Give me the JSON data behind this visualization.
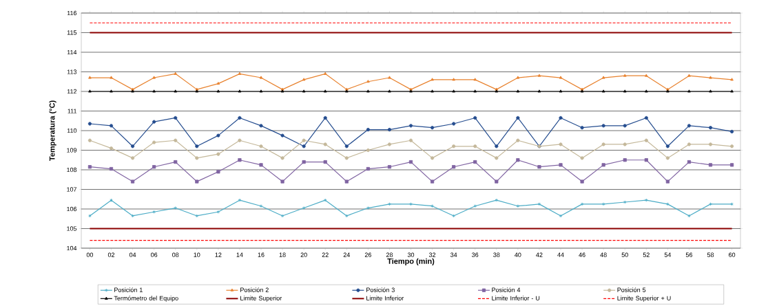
{
  "chart_data": {
    "type": "line",
    "xlabel": "Tiempo (min)",
    "ylabel": "Temperatura (°C)",
    "categories": [
      "00",
      "02",
      "04",
      "06",
      "08",
      "10",
      "12",
      "14",
      "16",
      "18",
      "20",
      "22",
      "24",
      "26",
      "28",
      "30",
      "32",
      "34",
      "36",
      "38",
      "40",
      "42",
      "44",
      "46",
      "48",
      "50",
      "52",
      "54",
      "56",
      "58",
      "60"
    ],
    "ylim": [
      104,
      116
    ],
    "yticks": [
      104,
      105,
      106,
      107,
      108,
      109,
      110,
      111,
      112,
      113,
      114,
      115,
      116
    ],
    "grid": "y",
    "legend": "bottom",
    "line_style": "solid",
    "series": [
      {
        "name": "Posición 1",
        "color": "#4bacc6",
        "marker": "cross",
        "values": [
          105.65,
          106.45,
          105.65,
          105.85,
          106.05,
          105.65,
          105.85,
          106.45,
          106.15,
          105.65,
          106.05,
          106.45,
          105.65,
          106.05,
          106.25,
          106.25,
          106.15,
          105.65,
          106.15,
          106.45,
          106.15,
          106.25,
          105.65,
          106.25,
          106.25,
          106.35,
          106.45,
          106.25,
          105.65,
          106.25,
          106.25
        ]
      },
      {
        "name": "Posición 2",
        "color": "#e8822e",
        "marker": "triangle",
        "values": [
          112.7,
          112.7,
          112.1,
          112.7,
          112.9,
          112.1,
          112.4,
          112.9,
          112.7,
          112.1,
          112.6,
          112.9,
          112.1,
          112.5,
          112.7,
          112.1,
          112.6,
          112.6,
          112.6,
          112.1,
          112.7,
          112.8,
          112.7,
          112.1,
          112.7,
          112.8,
          112.8,
          112.1,
          112.8,
          112.7,
          112.6
        ]
      },
      {
        "name": "Posición 3",
        "color": "#254d8f",
        "marker": "circle",
        "values": [
          110.35,
          110.25,
          109.2,
          110.45,
          110.65,
          109.2,
          109.75,
          110.65,
          110.25,
          109.75,
          109.2,
          110.65,
          109.2,
          110.05,
          110.05,
          110.25,
          110.15,
          110.35,
          110.65,
          109.2,
          110.65,
          109.2,
          110.65,
          110.15,
          110.25,
          110.25,
          110.65,
          109.2,
          110.25,
          110.15,
          109.95
        ]
      },
      {
        "name": "Posición 4",
        "color": "#8064a2",
        "marker": "square",
        "values": [
          108.15,
          108.05,
          107.4,
          108.15,
          108.4,
          107.4,
          107.9,
          108.5,
          108.25,
          107.4,
          108.4,
          108.4,
          107.4,
          108.05,
          108.15,
          108.4,
          107.4,
          108.15,
          108.4,
          107.4,
          108.5,
          108.15,
          108.25,
          107.4,
          108.25,
          108.5,
          108.5,
          107.4,
          108.4,
          108.25,
          108.25
        ]
      },
      {
        "name": "Posición 5",
        "color": "#c4b89a",
        "marker": "circle",
        "values": [
          109.5,
          109.1,
          108.6,
          109.4,
          109.5,
          108.6,
          108.8,
          109.5,
          109.2,
          108.6,
          109.5,
          109.3,
          108.6,
          109.0,
          109.3,
          109.5,
          108.6,
          109.2,
          109.2,
          108.6,
          109.5,
          109.2,
          109.3,
          108.6,
          109.3,
          109.3,
          109.5,
          108.6,
          109.3,
          109.3,
          109.2
        ]
      },
      {
        "name": "Termómetro del Equipo",
        "color": "#000000",
        "marker": "triangle",
        "values": [
          112,
          112,
          112,
          112,
          112,
          112,
          112,
          112,
          112,
          112,
          112,
          112,
          112,
          112,
          112,
          112,
          112,
          112,
          112,
          112,
          112,
          112,
          112,
          112,
          112,
          112,
          112,
          112,
          112,
          112,
          112
        ]
      },
      {
        "name": "Limite Superior",
        "color": "#8b0000",
        "marker": "none",
        "values": [
          115,
          115,
          115,
          115,
          115,
          115,
          115,
          115,
          115,
          115,
          115,
          115,
          115,
          115,
          115,
          115,
          115,
          115,
          115,
          115,
          115,
          115,
          115,
          115,
          115,
          115,
          115,
          115,
          115,
          115,
          115
        ]
      },
      {
        "name": "Limite Inferior",
        "color": "#8b0000",
        "marker": "none",
        "values": [
          105,
          105,
          105,
          105,
          105,
          105,
          105,
          105,
          105,
          105,
          105,
          105,
          105,
          105,
          105,
          105,
          105,
          105,
          105,
          105,
          105,
          105,
          105,
          105,
          105,
          105,
          105,
          105,
          105,
          105,
          105
        ]
      },
      {
        "name": "Limite Inferior -  U",
        "color": "#ff0000",
        "marker": "none",
        "line_style": "dashed",
        "values": [
          104.4,
          104.4,
          104.4,
          104.4,
          104.4,
          104.4,
          104.4,
          104.4,
          104.4,
          104.4,
          104.4,
          104.4,
          104.4,
          104.4,
          104.4,
          104.4,
          104.4,
          104.4,
          104.4,
          104.4,
          104.4,
          104.4,
          104.4,
          104.4,
          104.4,
          104.4,
          104.4,
          104.4,
          104.4,
          104.4,
          104.4
        ]
      },
      {
        "name": "Limite Superior +  U",
        "color": "#ff0000",
        "marker": "none",
        "line_style": "dashed",
        "values": [
          115.5,
          115.5,
          115.5,
          115.5,
          115.5,
          115.5,
          115.5,
          115.5,
          115.5,
          115.5,
          115.5,
          115.5,
          115.5,
          115.5,
          115.5,
          115.5,
          115.5,
          115.5,
          115.5,
          115.5,
          115.5,
          115.5,
          115.5,
          115.5,
          115.5,
          115.5,
          115.5,
          115.5,
          115.5,
          115.5,
          115.5
        ]
      }
    ]
  }
}
